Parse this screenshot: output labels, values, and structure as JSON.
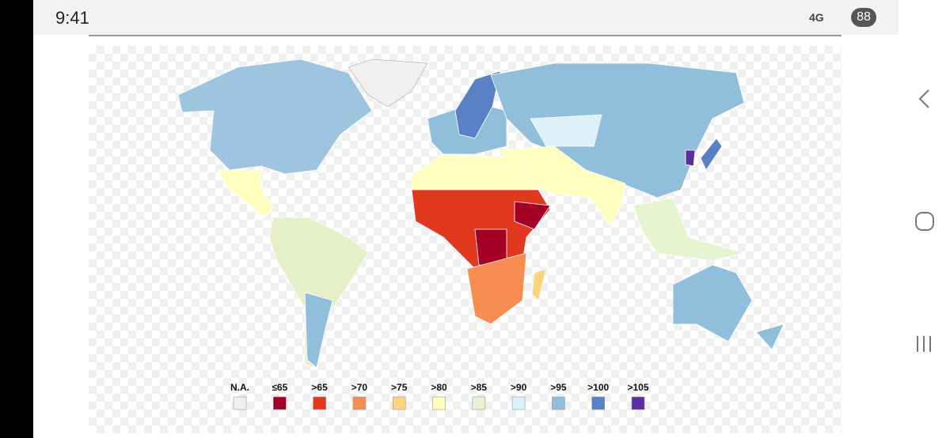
{
  "status_bar": {
    "time": "9:41",
    "network": "4G",
    "battery": "88"
  },
  "legend": {
    "items": [
      {
        "label": "N.A.",
        "color": "#f0f0f0"
      },
      {
        "label": "≤65",
        "color": "#a50026"
      },
      {
        "label": ">65",
        "color": "#e0391f"
      },
      {
        "label": ">70",
        "color": "#f88d52"
      },
      {
        "label": ">75",
        "color": "#fdd380"
      },
      {
        "label": ">80",
        "color": "#ffffbf"
      },
      {
        "label": ">85",
        "color": "#e6f5d0"
      },
      {
        "label": ">90",
        "color": "#dcf1f8"
      },
      {
        "label": ">95",
        "color": "#91bfdb"
      },
      {
        "label": ">100",
        "color": "#5a80c6"
      },
      {
        "label": ">105",
        "color": "#5a2ea0"
      }
    ]
  }
}
